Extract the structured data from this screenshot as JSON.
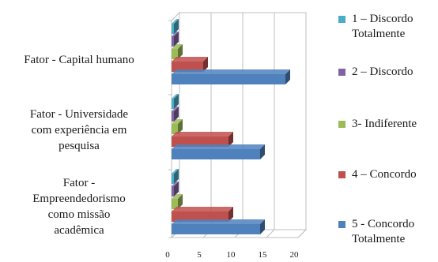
{
  "chart_data": {
    "type": "bar",
    "orientation": "horizontal",
    "style": "3d",
    "categories": [
      "Fator - Capital humano",
      "Fator - Universidade com experiência em pesquisa",
      "Fator - Empreendedorismo como missão acadêmica"
    ],
    "category_lines": [
      [
        "Fator - Capital humano"
      ],
      [
        "Fator - Universidade",
        "com experiência em",
        "pesquisa"
      ],
      [
        "Fator -",
        "Empreendedorismo",
        "como missão",
        "acadêmica"
      ]
    ],
    "series": [
      {
        "name": "1 – Discordo Totalmente",
        "name_lines": [
          "1 – Discordo",
          "Totalmente"
        ],
        "color": "#4bacc6",
        "values": [
          0,
          0,
          0
        ]
      },
      {
        "name": "2 – Discordo",
        "name_lines": [
          "2 – Discordo"
        ],
        "color": "#8064a2",
        "values": [
          0,
          0,
          0
        ]
      },
      {
        "name": "3- Indiferente",
        "name_lines": [
          "3- Indiferente"
        ],
        "color": "#9bbb59",
        "values": [
          1,
          1,
          1
        ]
      },
      {
        "name": "4 – Concordo",
        "name_lines": [
          "4 – Concordo"
        ],
        "color": "#c0504d",
        "values": [
          5,
          9,
          9
        ]
      },
      {
        "name": "5 - Concordo Totalmente",
        "name_lines": [
          "5 - Concordo",
          "Totalmente"
        ],
        "color": "#4f81bd",
        "values": [
          18,
          14,
          14
        ]
      }
    ],
    "x_ticks": [
      "0",
      "5",
      "10",
      "15",
      "20"
    ],
    "xlim": [
      0,
      20
    ],
    "title": "",
    "xlabel": "",
    "ylabel": "",
    "legend_position": "right",
    "grid": true
  }
}
